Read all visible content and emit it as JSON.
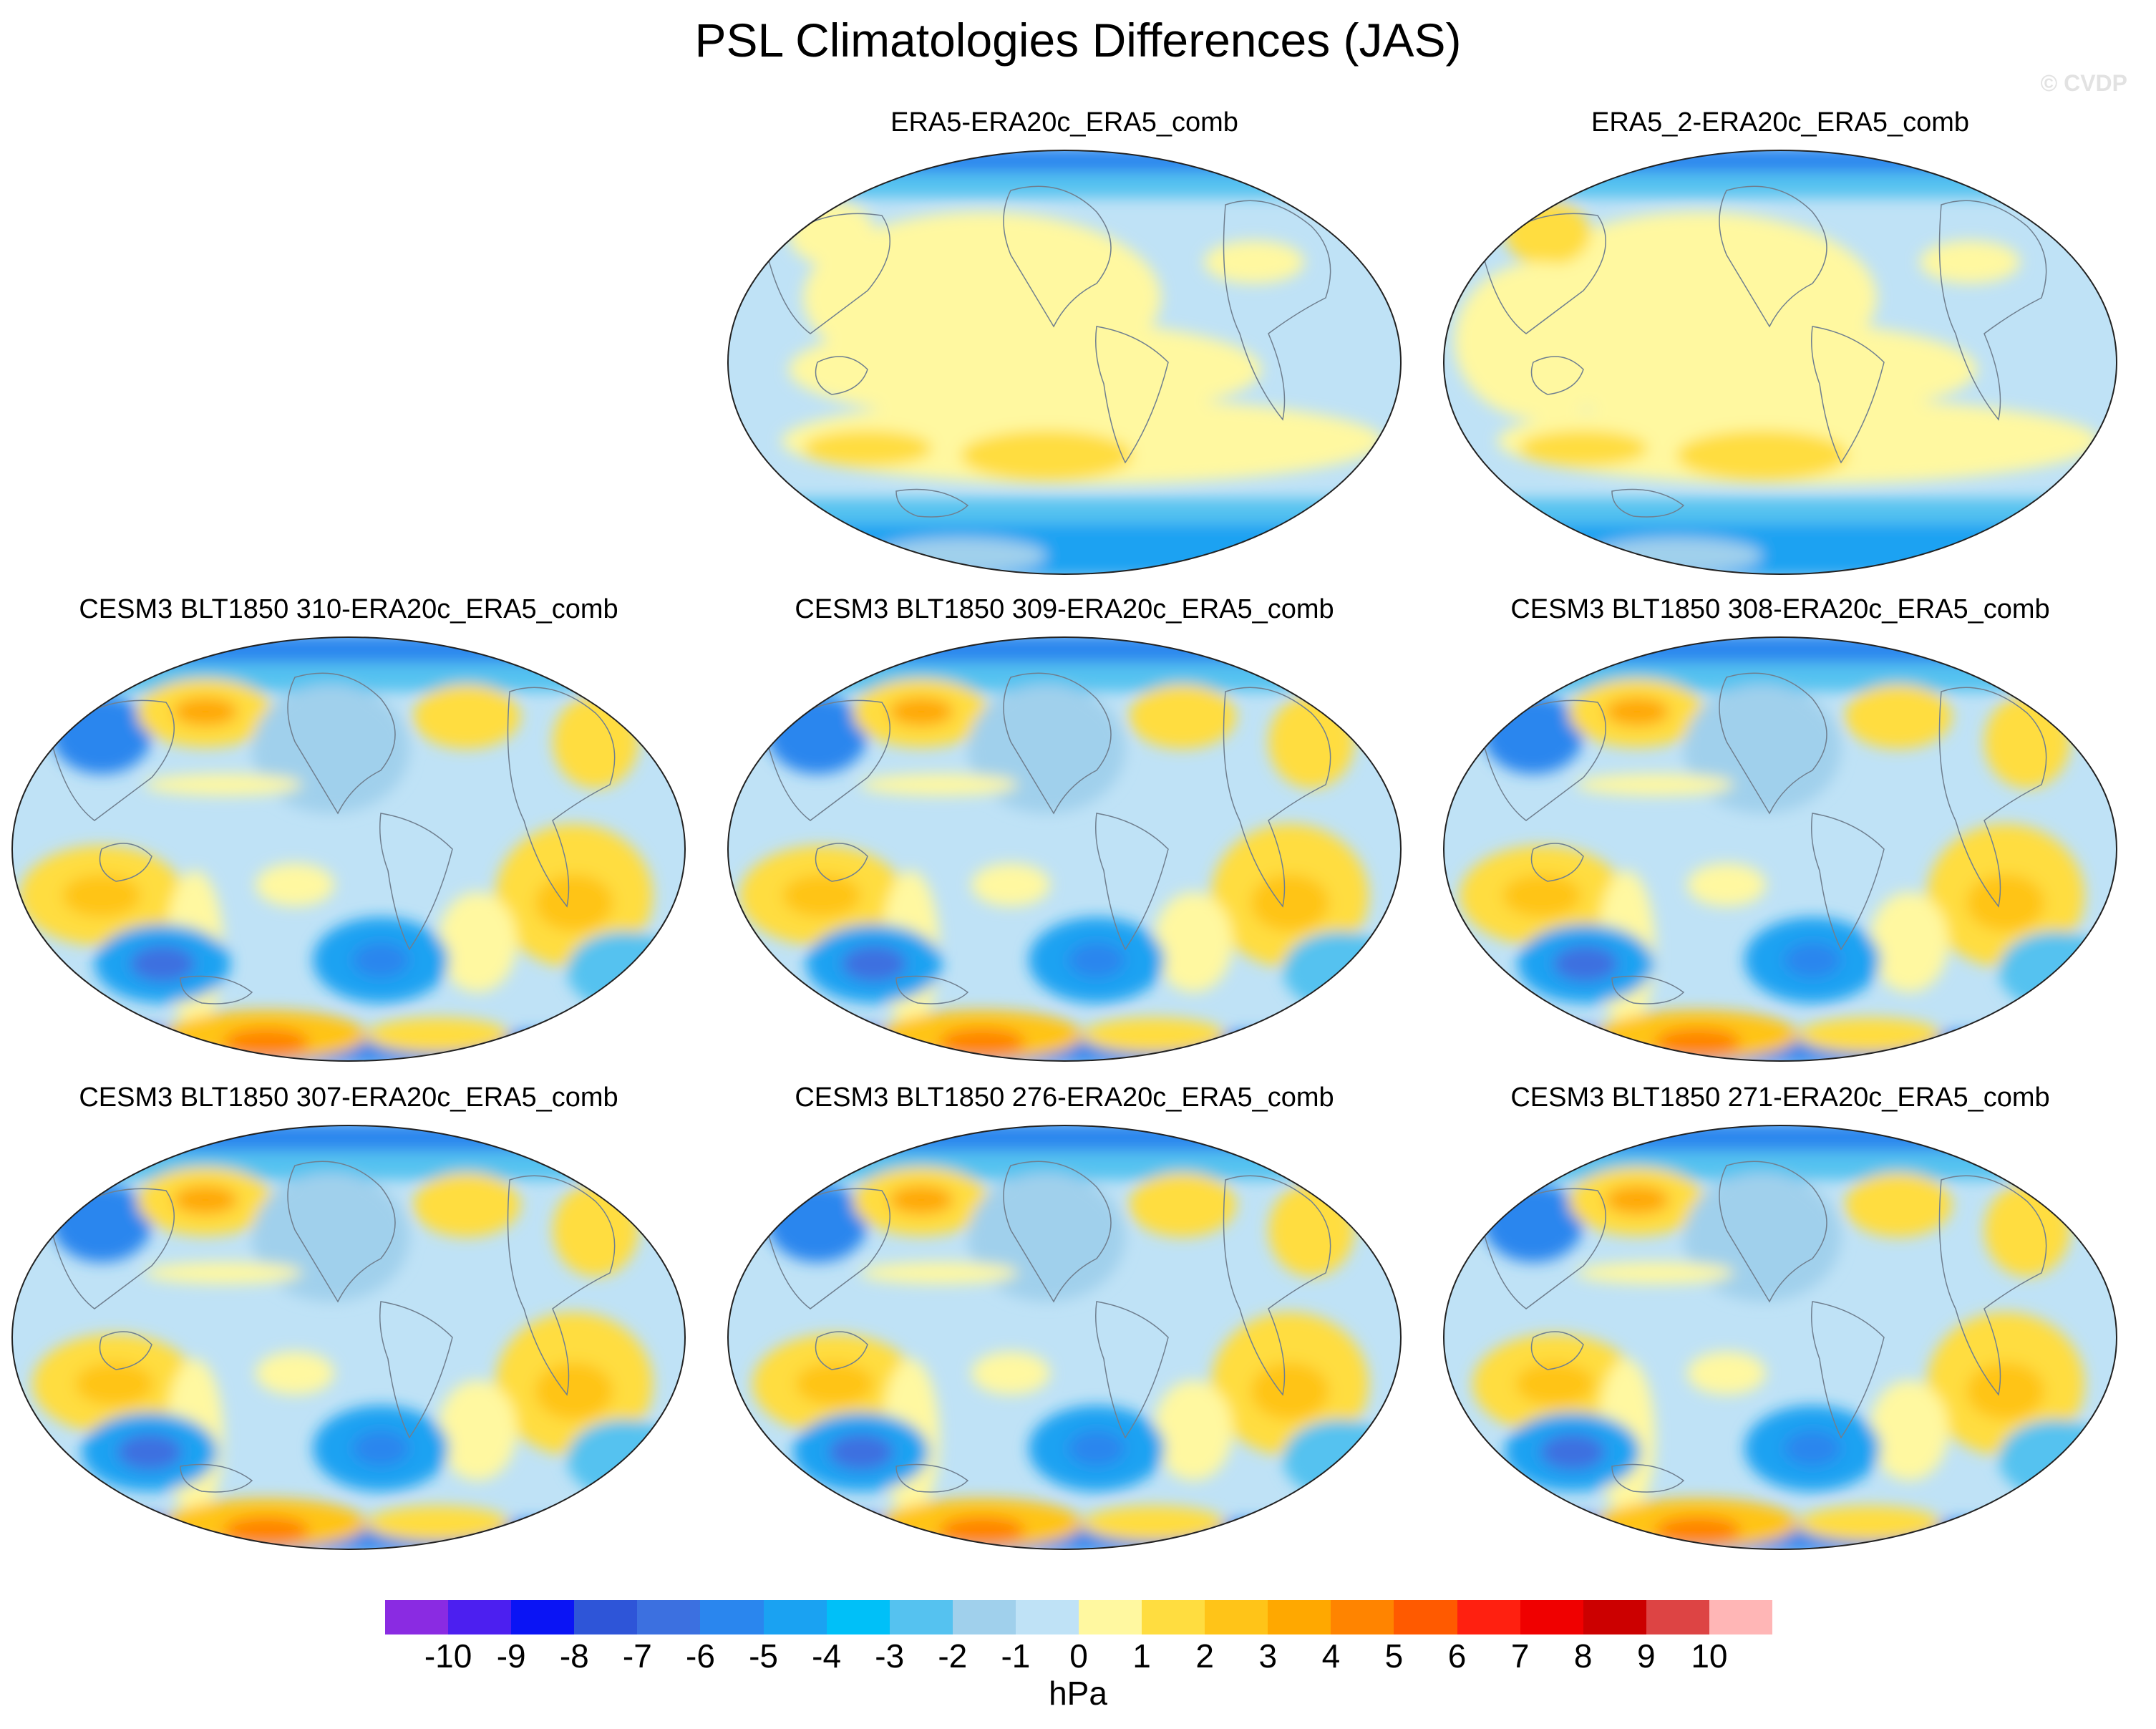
{
  "title": "PSL Climatologies Differences (JAS)",
  "watermark": "© CVDP",
  "panels": [
    {
      "title": "ERA5-ERA20c_ERA5_comb",
      "style": "obs",
      "variant": 0
    },
    {
      "title": "ERA5_2-ERA20c_ERA5_comb",
      "style": "obs",
      "variant": 1
    },
    {
      "title": "CESM3 BLT1850 310-ERA20c_ERA5_comb",
      "style": "model",
      "variant": 0
    },
    {
      "title": "CESM3 BLT1850 309-ERA20c_ERA5_comb",
      "style": "model",
      "variant": 1
    },
    {
      "title": "CESM3 BLT1850 308-ERA20c_ERA5_comb",
      "style": "model",
      "variant": 2
    },
    {
      "title": "CESM3 BLT1850 307-ERA20c_ERA5_comb",
      "style": "model",
      "variant": 3
    },
    {
      "title": "CESM3 BLT1850 276-ERA20c_ERA5_comb",
      "style": "model",
      "variant": 4
    },
    {
      "title": "CESM3 BLT1850 271-ERA20c_ERA5_comb",
      "style": "model",
      "variant": 5
    }
  ],
  "colorbar": {
    "units": "hPa",
    "labels": [
      "-10",
      "-9",
      "-8",
      "-7",
      "-6",
      "-5",
      "-4",
      "-3",
      "-2",
      "-1",
      "0",
      "1",
      "2",
      "3",
      "4",
      "5",
      "6",
      "7",
      "8",
      "9",
      "10"
    ],
    "colors": [
      "#8a2be2",
      "#4c1ff0",
      "#0a14f5",
      "#2e55d8",
      "#3c70e0",
      "#2a86ee",
      "#1aa2f2",
      "#00c0f8",
      "#55c2f0",
      "#a0d0ec",
      "#bfe2f6",
      "#fff8a0",
      "#ffdd40",
      "#ffc418",
      "#ffa800",
      "#ff8400",
      "#ff5a00",
      "#ff2010",
      "#f00000",
      "#cc0000",
      "#dd4444",
      "#ffb6b6"
    ]
  },
  "palette": {
    "ocean_base": "#bfe2f6",
    "light_blue": "#a0d0ec",
    "mid_blue": "#55c2f0",
    "blue": "#1aa2f2",
    "deep_blue": "#2a86ee",
    "darker_blue": "#3c70e0",
    "pale_yellow": "#fff8a0",
    "yellow": "#ffdd40",
    "gold": "#ffc418",
    "orange": "#ffa800",
    "dark_orange": "#ff8400",
    "red": "#ff2010",
    "coast": "#6f7f8f"
  }
}
